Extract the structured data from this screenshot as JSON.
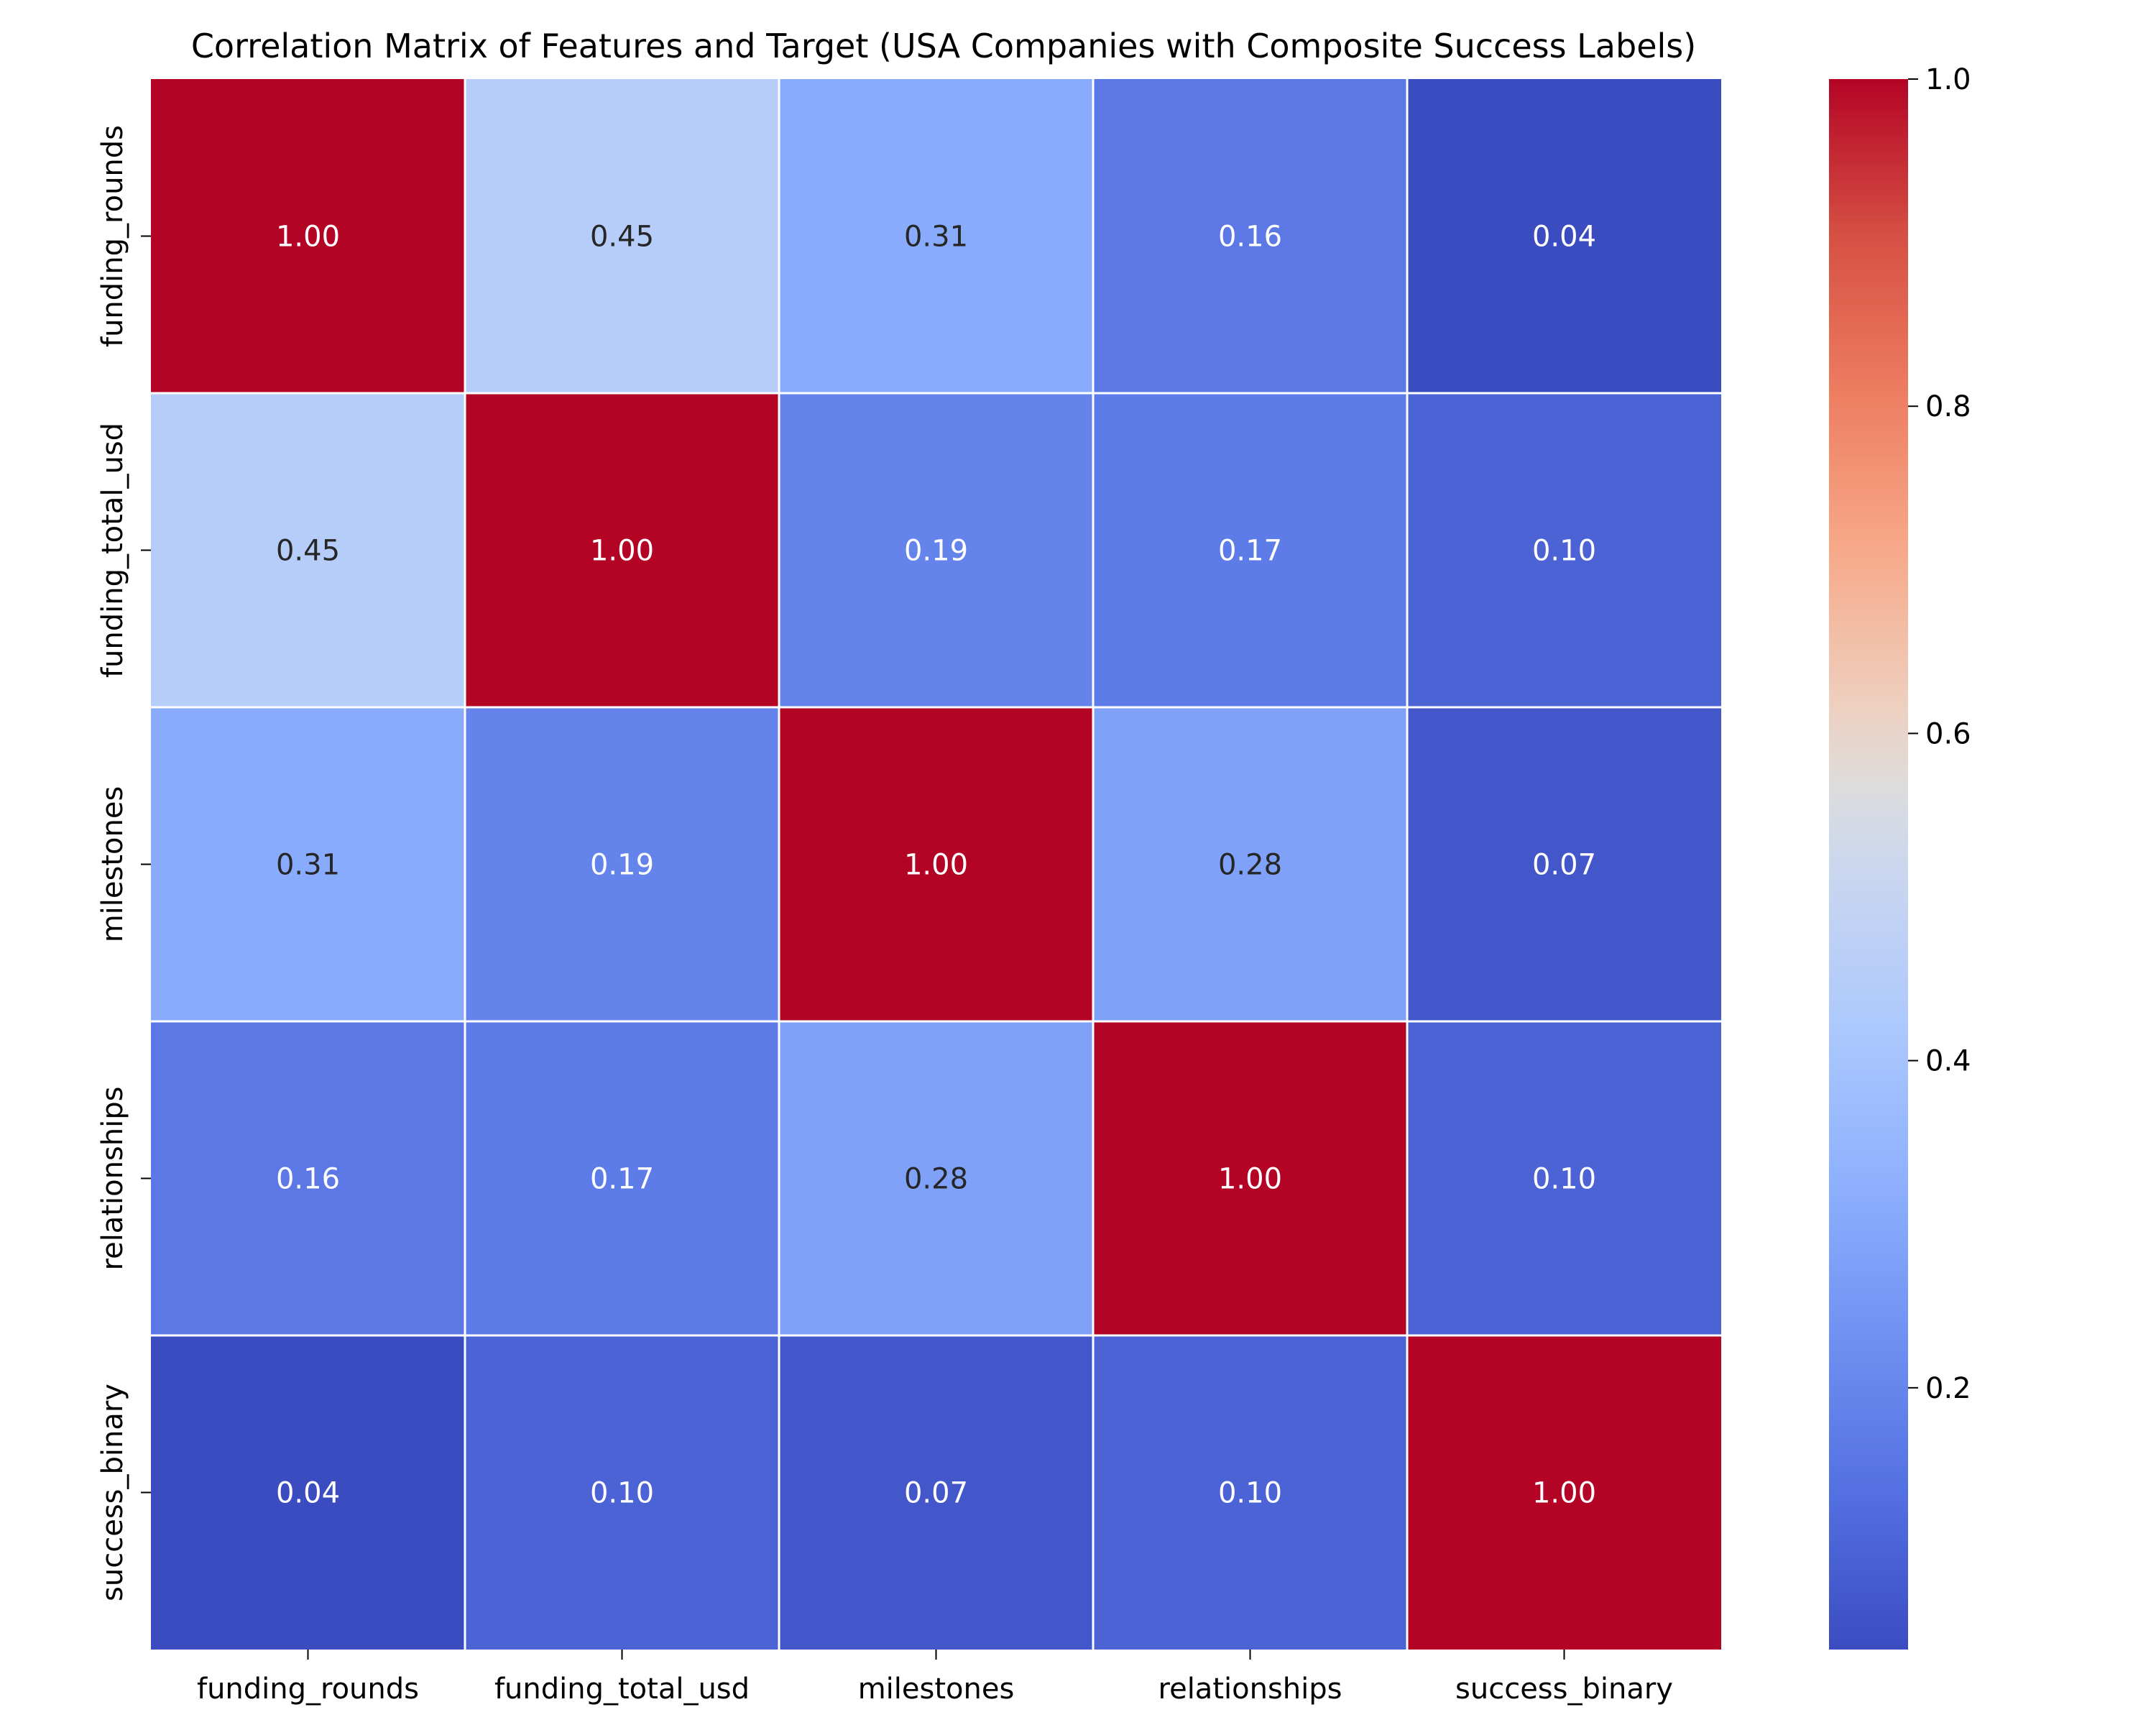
{
  "chart_data": {
    "type": "heatmap",
    "title": "Correlation Matrix of Features and Target (USA Companies with Composite Success Labels)",
    "x_labels": [
      "funding_rounds",
      "funding_total_usd",
      "milestones",
      "relationships",
      "success_binary"
    ],
    "y_labels": [
      "funding_rounds",
      "funding_total_usd",
      "milestones",
      "relationships",
      "success_binary"
    ],
    "values": [
      [
        1.0,
        0.45,
        0.31,
        0.16,
        0.04
      ],
      [
        0.45,
        1.0,
        0.19,
        0.17,
        0.1
      ],
      [
        0.31,
        0.19,
        1.0,
        0.28,
        0.07
      ],
      [
        0.16,
        0.17,
        0.28,
        1.0,
        0.1
      ],
      [
        0.04,
        0.1,
        0.07,
        0.1,
        1.0
      ]
    ],
    "value_format": "0.00",
    "colormap": "coolwarm",
    "color_range": [
      0.04,
      1.0
    ],
    "colorbar": {
      "ticks": [
        0.2,
        0.4,
        0.6,
        0.8,
        1.0
      ],
      "tick_labels": [
        "0.2",
        "0.4",
        "0.6",
        "0.8",
        "1.0"
      ],
      "placement": "right"
    },
    "grid_line_color": "#ffffff",
    "annotation_colors": {
      "light": "#ffffff",
      "dark": "#262626"
    }
  }
}
